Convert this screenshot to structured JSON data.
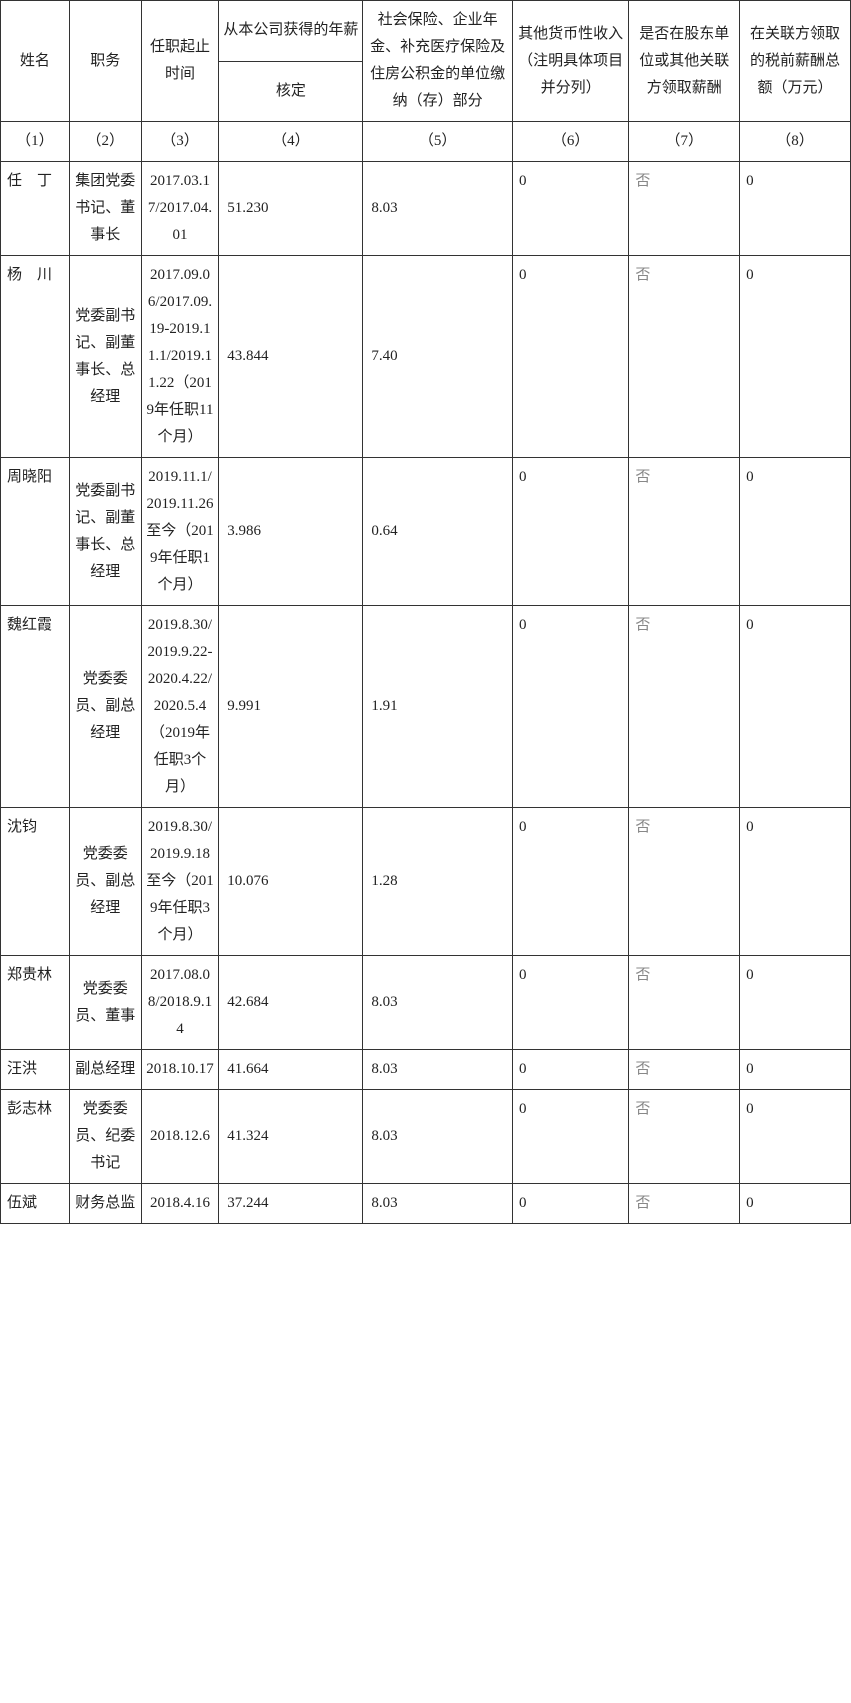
{
  "headers": {
    "c1": "姓名",
    "c2": "职务",
    "c3": "任职起止时间",
    "c4_top": "从本公司获得的年薪",
    "c4_sub": "核定",
    "c5": "社会保险、企业年金、补充医疗保险及住房公积金的单位缴纳（存）部分",
    "c6": "其他货币性收入（注明具体项目并分列）",
    "c7": "是否在股东单位或其他关联方领取薪酬",
    "c8": "在关联方领取的税前薪酬总额（万元）"
  },
  "numrow": {
    "c1": "（1）",
    "c2": "（2）",
    "c3": "（3）",
    "c4": "（4）",
    "c5": "（5）",
    "c6": "（6）",
    "c7": "（7）",
    "c8": "（8）"
  },
  "rows": [
    {
      "name": "任　丁",
      "pos": "集团党委书记、董事长",
      "term": "2017.03.17/2017.04.01",
      "salary": "51.230",
      "ins": "8.03",
      "other": "0",
      "share": "否",
      "rel": "0"
    },
    {
      "name": "杨　川",
      "pos": "党委副书记、副董事长、总经理",
      "term": "2017.09.06/2017.09.19-2019.11.1/2019.11.22（2019年任职11个月）",
      "salary": "43.844",
      "ins": "7.40",
      "other": "0",
      "share": "否",
      "rel": "0"
    },
    {
      "name": "周晓阳",
      "pos": "党委副书记、副董事长、总经理",
      "term": "2019.11.1/2019.11.26至今（2019年任职1个月）",
      "salary": "3.986",
      "ins": "0.64",
      "other": "0",
      "share": "否",
      "rel": "0"
    },
    {
      "name": "魏红霞",
      "pos": "党委委员、副总经理",
      "term": "2019.8.30/2019.9.22-2020.4.22/2020.5.4（2019年任职3个月）",
      "salary": "9.991",
      "ins": "1.91",
      "other": "0",
      "share": "否",
      "rel": "0"
    },
    {
      "name": "沈钧",
      "pos": "党委委员、副总经理",
      "term": "2019.8.30/2019.9.18至今（2019年任职3个月）",
      "salary": "10.076",
      "ins": "1.28",
      "other": "0",
      "share": "否",
      "rel": "0"
    },
    {
      "name": "郑贵林",
      "pos": "党委委员、董事",
      "term": "2017.08.08/2018.9.14",
      "salary": "42.684",
      "ins": "8.03",
      "other": "0",
      "share": "否",
      "rel": "0"
    },
    {
      "name": "汪洪",
      "pos": "副总经理",
      "term": "2018.10.17",
      "salary": "41.664",
      "ins": "8.03",
      "other": "0",
      "share": "否",
      "rel": "0"
    },
    {
      "name": "彭志林",
      "pos": "党委委员、纪委书记",
      "term": "2018.12.6",
      "salary": "41.324",
      "ins": "8.03",
      "other": "0",
      "share": "否",
      "rel": "0"
    },
    {
      "name": "伍斌",
      "pos": "财务总监",
      "term": "2018.4.16",
      "salary": "37.244",
      "ins": "8.03",
      "other": "0",
      "share": "否",
      "rel": "0"
    }
  ],
  "style": {
    "border_color": "#333333",
    "text_color": "#222222",
    "gray_color": "#888888",
    "font_size": 15,
    "background": "#ffffff"
  }
}
